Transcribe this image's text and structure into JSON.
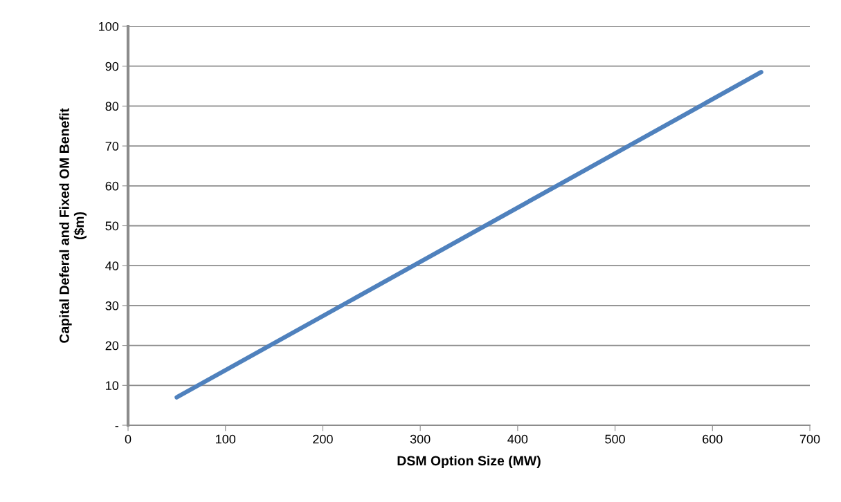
{
  "chart_data": {
    "type": "line",
    "xlabel": "DSM Option Size (MW)",
    "ylabel": "Capital Deferal and Fixed OM Benefit\n($m)",
    "x": [
      50,
      650
    ],
    "series": [
      {
        "color": "#4f81bd",
        "values": [
          7,
          88.5
        ]
      }
    ],
    "xlim": [
      0,
      700
    ],
    "xticks": [
      0,
      100,
      200,
      300,
      400,
      500,
      600,
      700
    ],
    "ylim": [
      0,
      100
    ],
    "yticks": [
      {
        "value": 0,
        "label": "-"
      },
      10,
      20,
      30,
      40,
      50,
      60,
      70,
      80,
      90,
      100
    ],
    "grid": "y",
    "legend": false,
    "marker": "none",
    "line_style": "solid"
  }
}
